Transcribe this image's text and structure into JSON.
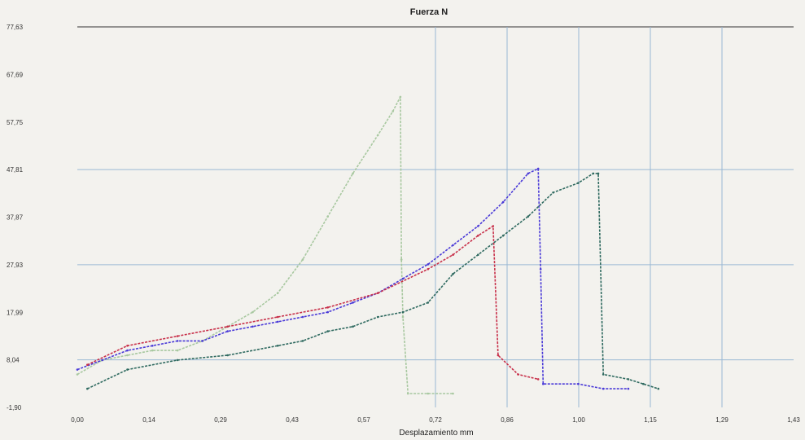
{
  "chart_data": {
    "type": "line",
    "title": "Fuerza  N",
    "xlabel": "Desplazamiento   mm",
    "ylabel": "",
    "xlim": [
      0.0,
      1.43
    ],
    "ylim": [
      -1.9,
      77.63
    ],
    "x_ticks": [
      "0,00",
      "0,14",
      "0,29",
      "0,43",
      "0,57",
      "0,72",
      "0,86",
      "1,00",
      "1,15",
      "1,29",
      "1,43"
    ],
    "y_ticks": [
      "-1,90",
      "8,04",
      "17,99",
      "27,93",
      "37,87",
      "47,81",
      "57,75",
      "67,69",
      "77,63"
    ],
    "grid": true,
    "legend": "none",
    "series": [
      {
        "color": "#a8c8a0",
        "points": [
          [
            0.0,
            5
          ],
          [
            0.05,
            8
          ],
          [
            0.1,
            9
          ],
          [
            0.15,
            10
          ],
          [
            0.2,
            10
          ],
          [
            0.25,
            12
          ],
          [
            0.3,
            15
          ],
          [
            0.35,
            18
          ],
          [
            0.4,
            22
          ],
          [
            0.45,
            29
          ],
          [
            0.5,
            38
          ],
          [
            0.55,
            47
          ],
          [
            0.6,
            55
          ],
          [
            0.63,
            60
          ],
          [
            0.645,
            63
          ],
          [
            0.647,
            29
          ],
          [
            0.65,
            17
          ],
          [
            0.66,
            1
          ],
          [
            0.7,
            1
          ],
          [
            0.75,
            1
          ]
        ]
      },
      {
        "color": "#4a3ad8",
        "points": [
          [
            0.0,
            6
          ],
          [
            0.05,
            8
          ],
          [
            0.1,
            10
          ],
          [
            0.15,
            11
          ],
          [
            0.2,
            12
          ],
          [
            0.25,
            12
          ],
          [
            0.3,
            14
          ],
          [
            0.35,
            15
          ],
          [
            0.4,
            16
          ],
          [
            0.45,
            17
          ],
          [
            0.5,
            18
          ],
          [
            0.55,
            20
          ],
          [
            0.6,
            22
          ],
          [
            0.65,
            25
          ],
          [
            0.7,
            28
          ],
          [
            0.75,
            32
          ],
          [
            0.8,
            36
          ],
          [
            0.85,
            41
          ],
          [
            0.9,
            47
          ],
          [
            0.92,
            48
          ],
          [
            0.925,
            27
          ],
          [
            0.93,
            3
          ],
          [
            1.0,
            3
          ],
          [
            1.05,
            2
          ],
          [
            1.1,
            2
          ]
        ]
      },
      {
        "color": "#c8304a",
        "points": [
          [
            0.02,
            7
          ],
          [
            0.1,
            11
          ],
          [
            0.2,
            13
          ],
          [
            0.3,
            15
          ],
          [
            0.4,
            17
          ],
          [
            0.5,
            19
          ],
          [
            0.6,
            22
          ],
          [
            0.7,
            27
          ],
          [
            0.75,
            30
          ],
          [
            0.8,
            34
          ],
          [
            0.83,
            36
          ],
          [
            0.84,
            9
          ],
          [
            0.88,
            5
          ],
          [
            0.92,
            4
          ]
        ]
      },
      {
        "color": "#2f6a60",
        "points": [
          [
            0.02,
            2
          ],
          [
            0.1,
            6
          ],
          [
            0.2,
            8
          ],
          [
            0.3,
            9
          ],
          [
            0.4,
            11
          ],
          [
            0.45,
            12
          ],
          [
            0.5,
            14
          ],
          [
            0.55,
            15
          ],
          [
            0.6,
            17
          ],
          [
            0.65,
            18
          ],
          [
            0.7,
            20
          ],
          [
            0.75,
            26
          ],
          [
            0.8,
            30
          ],
          [
            0.85,
            34
          ],
          [
            0.9,
            38
          ],
          [
            0.95,
            43
          ],
          [
            1.0,
            45
          ],
          [
            1.03,
            47
          ],
          [
            1.04,
            47
          ],
          [
            1.05,
            5
          ],
          [
            1.1,
            4
          ],
          [
            1.13,
            3
          ],
          [
            1.16,
            2
          ]
        ]
      }
    ]
  }
}
